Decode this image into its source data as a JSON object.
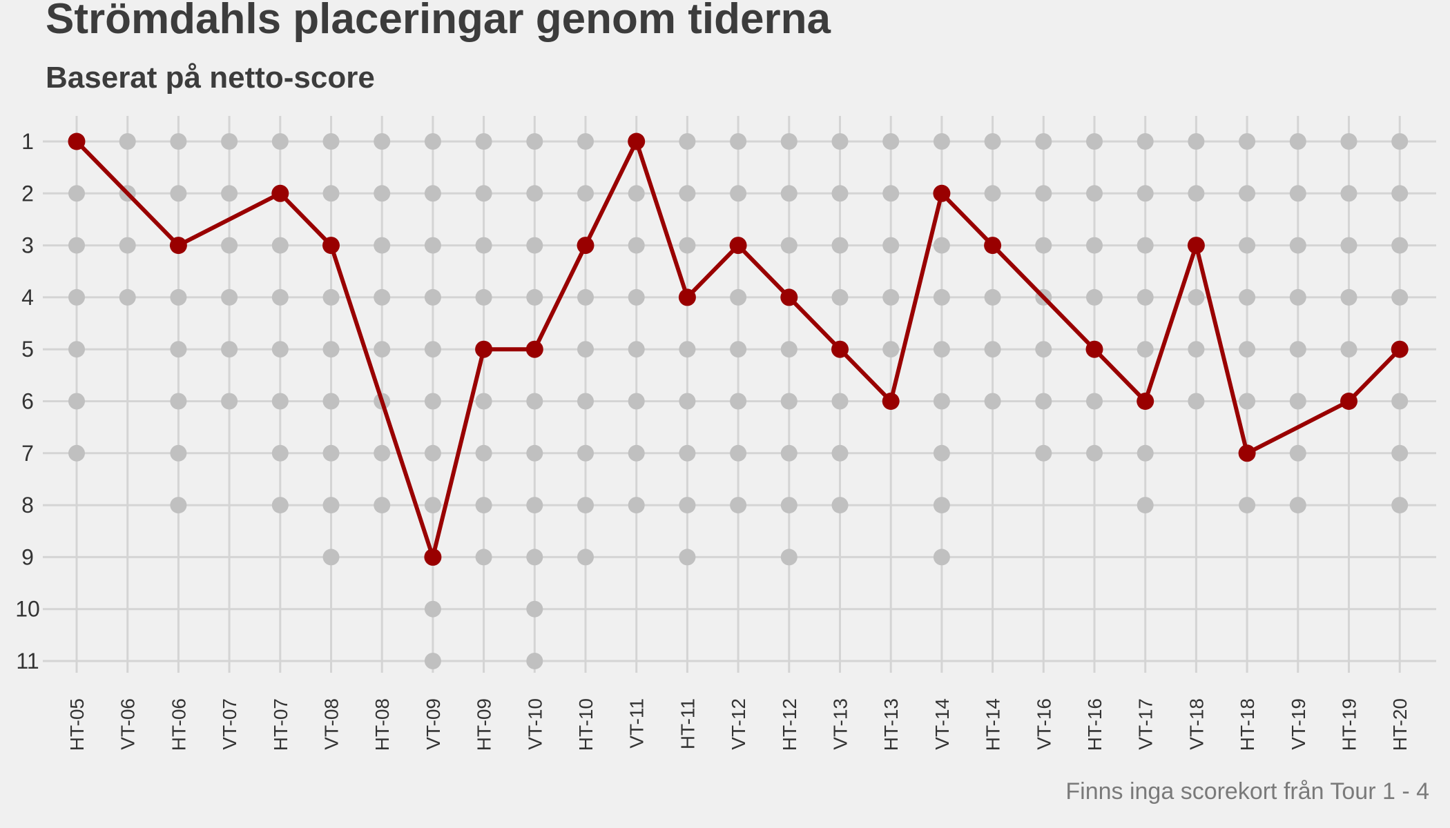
{
  "colors": {
    "background": "#f0f0f0",
    "grid": "#d4d4d4",
    "other_points": "#c0c0c0",
    "highlight": "#990000",
    "text": "#3c3c3c"
  },
  "chart_data": {
    "type": "line",
    "title": "Strömdahls placeringar genom tiderna",
    "subtitle": "Baserat på netto-score",
    "caption": "Finns inga scorekort från Tour 1 - 4",
    "xlabel": "",
    "ylabel": "",
    "y_reversed": true,
    "ylim": [
      1,
      11
    ],
    "y_ticks": [
      1,
      2,
      3,
      4,
      5,
      6,
      7,
      8,
      9,
      10,
      11
    ],
    "grid": true,
    "categories": [
      "HT-05",
      "VT-06",
      "HT-06",
      "VT-07",
      "HT-07",
      "VT-08",
      "HT-08",
      "VT-09",
      "HT-09",
      "VT-10",
      "HT-10",
      "VT-11",
      "HT-11",
      "VT-12",
      "HT-12",
      "VT-13",
      "HT-13",
      "VT-14",
      "HT-14",
      "VT-16",
      "HT-16",
      "VT-17",
      "VT-18",
      "HT-18",
      "VT-19",
      "HT-19",
      "HT-20"
    ],
    "field_size": [
      7,
      4,
      8,
      6,
      8,
      9,
      8,
      11,
      9,
      11,
      9,
      8,
      9,
      8,
      9,
      8,
      6,
      9,
      6,
      7,
      7,
      8,
      6,
      8,
      8,
      6,
      8
    ],
    "series": [
      {
        "values": [
          1,
          2,
          3,
          2.5,
          2,
          3,
          6,
          9,
          5,
          5,
          3,
          1,
          4,
          3,
          4,
          5,
          6,
          2,
          3,
          4,
          5,
          6,
          3,
          7,
          6.5,
          6,
          5
        ],
        "marker": [
          true,
          false,
          true,
          false,
          true,
          true,
          false,
          true,
          true,
          true,
          true,
          true,
          true,
          true,
          true,
          true,
          true,
          true,
          true,
          false,
          true,
          true,
          true,
          true,
          false,
          true,
          true
        ]
      }
    ]
  }
}
